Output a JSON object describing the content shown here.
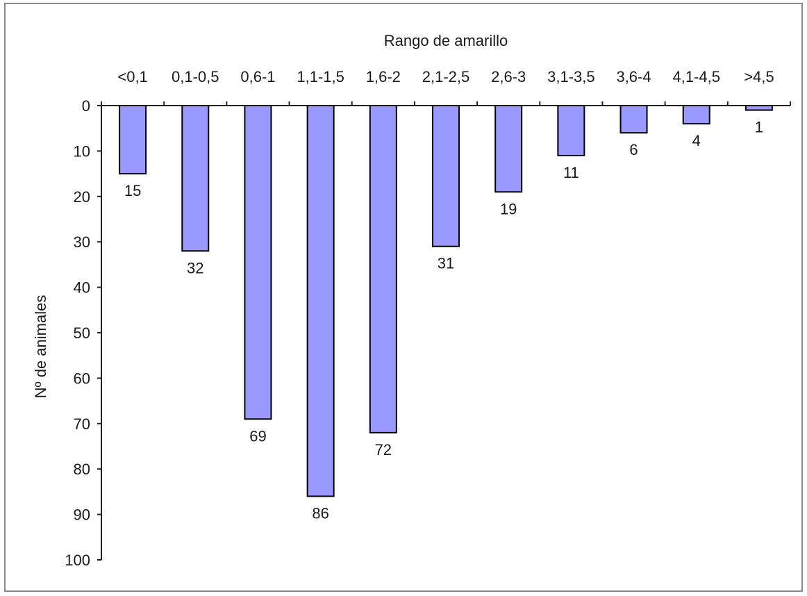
{
  "chart_data": {
    "type": "bar",
    "orientation": "inverted-y (values grow downward), categories along top axis",
    "title": "",
    "xlabel": "Rango de amarillo",
    "ylabel": "Nº de animales",
    "categories": [
      "<0,1",
      "0,1-0,5",
      "0,6-1",
      "1,1-1,5",
      "1,6-2",
      "2,1-2,5",
      "2,6-3",
      "3,1-3,5",
      "3,6-4",
      "4,1-4,5",
      ">4,5"
    ],
    "values": [
      15,
      32,
      69,
      86,
      72,
      31,
      19,
      11,
      6,
      4,
      1
    ],
    "data_labels": [
      "15",
      "32",
      "69",
      "86",
      "72",
      "31",
      "19",
      "11",
      "6",
      "4",
      "1"
    ],
    "ylim": [
      0,
      100
    ],
    "yticks": [
      "0",
      "10",
      "20",
      "30",
      "40",
      "50",
      "60",
      "70",
      "80",
      "90",
      "100"
    ],
    "grid": false,
    "legend": "none",
    "bar_color": "#9999ff",
    "bar_border_color": "#000000"
  }
}
